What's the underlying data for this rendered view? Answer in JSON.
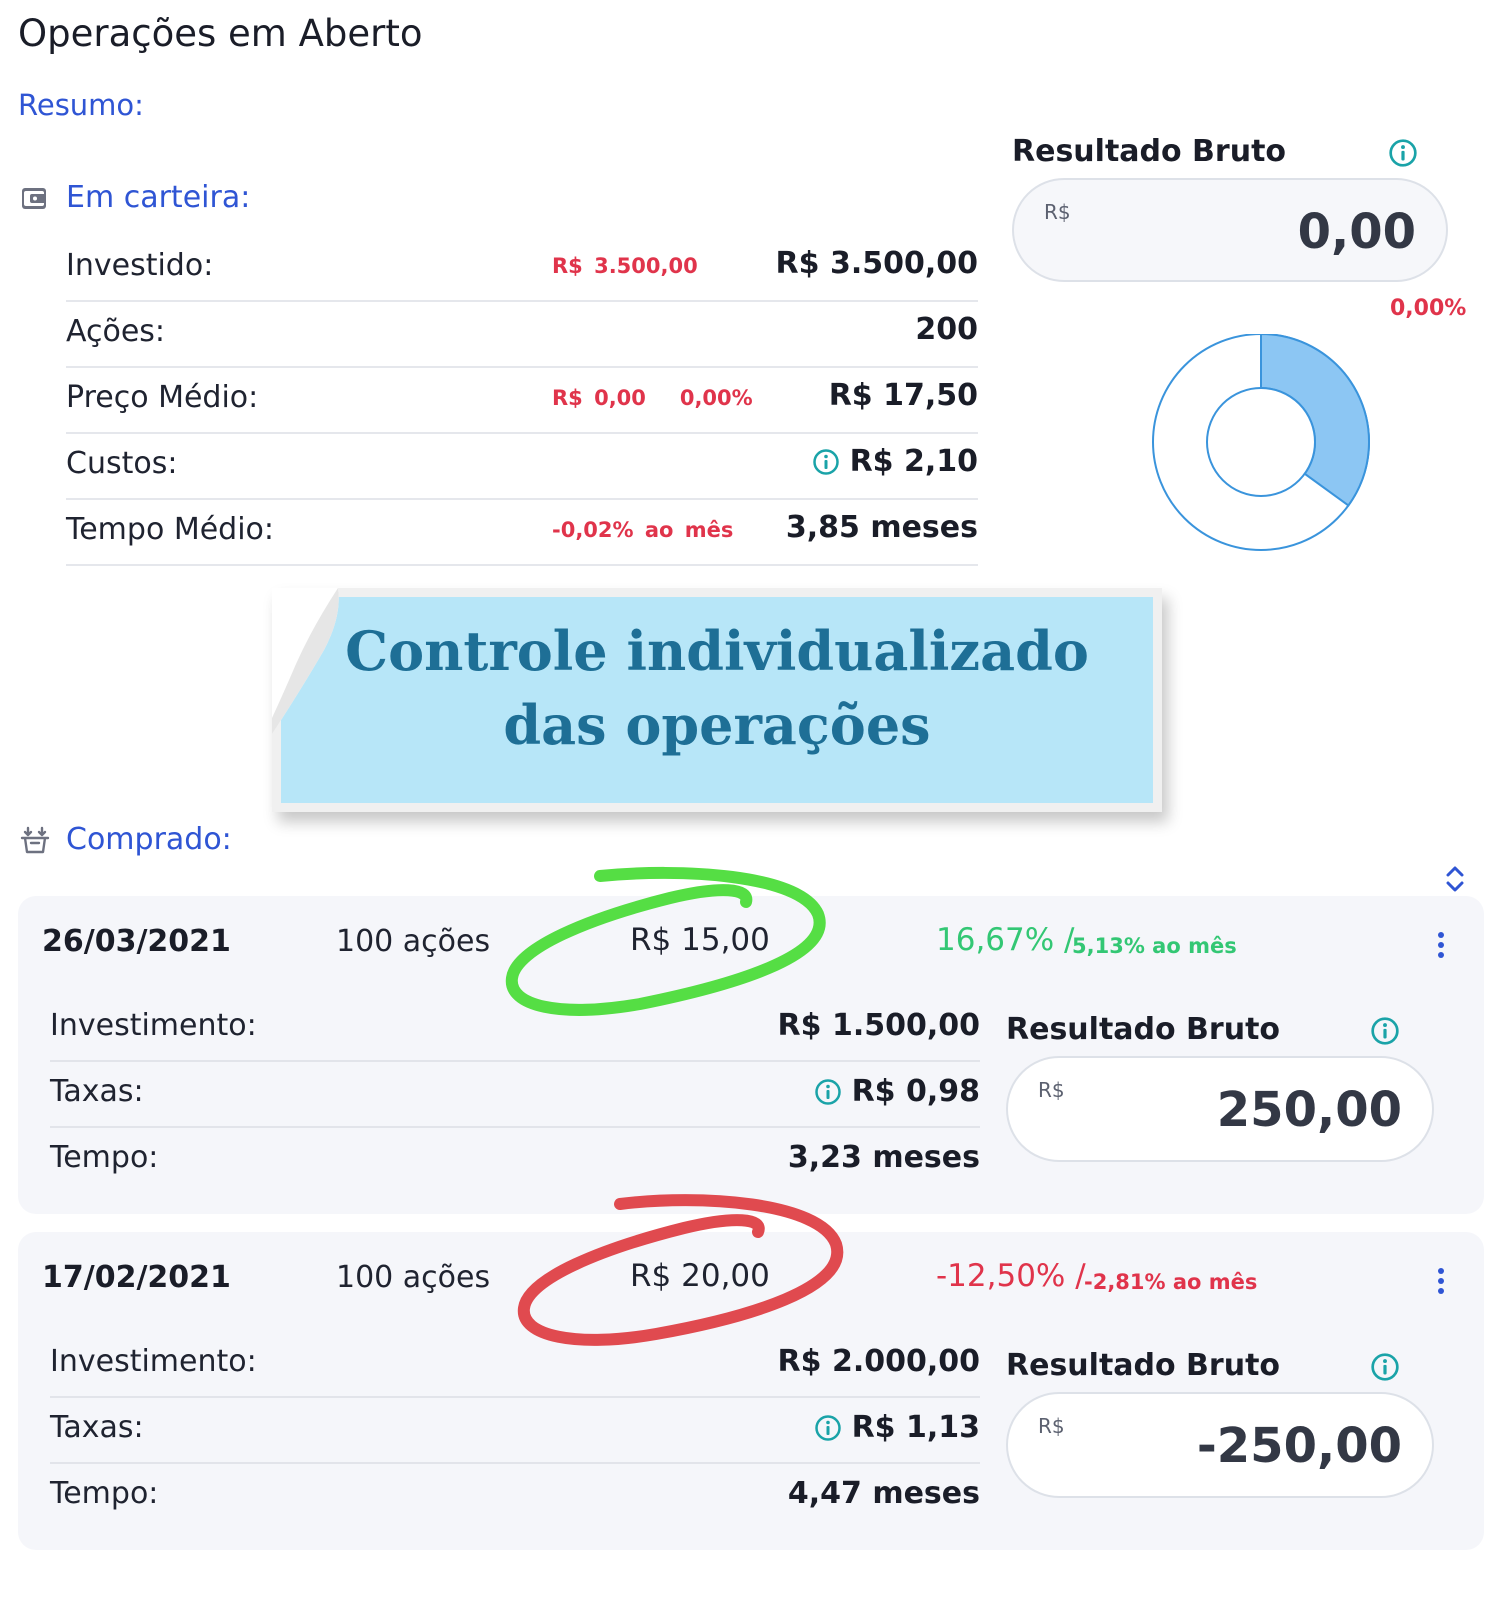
{
  "page_title": "Operações em Aberto",
  "resumo_label": "Resumo:",
  "em_carteira": {
    "label": "Em carteira:",
    "rows": [
      {
        "label": "Investido:",
        "mid": "R$ 3.500,00",
        "value": "R$ 3.500,00"
      },
      {
        "label": "Ações:",
        "mid": "",
        "value": "200"
      },
      {
        "label": "Preço Médio:",
        "mid": "R$ 0,00   0,00%",
        "value": "R$ 17,50"
      },
      {
        "label": "Custos:",
        "mid": "",
        "value": "R$ 2,10"
      },
      {
        "label": "Tempo Médio:",
        "mid": "-0,02% ao mês",
        "value": "3,85 meses"
      }
    ]
  },
  "resultado_bruto": {
    "title": "Resultado Bruto",
    "currency": "R$",
    "value": "0,00",
    "percent": "0,00%",
    "donut_fraction": 0.35
  },
  "banner": {
    "line1": "Controle individualizado",
    "line2": "das operações"
  },
  "comprado": {
    "label": "Comprado:",
    "operations": [
      {
        "date": "26/03/2021",
        "qty": "100 ações",
        "price": "R$ 15,00",
        "pct": "16,67% /",
        "pct_month": "5,13% ao mês",
        "investment_label": "Investimento:",
        "investment": "R$ 1.500,00",
        "fees_label": "Taxas:",
        "fees": "R$ 0,98",
        "time_label": "Tempo:",
        "time": "3,23 meses",
        "result_title": "Resultado Bruto",
        "result_currency": "R$",
        "result": "250,00",
        "status_color": "#33c774"
      },
      {
        "date": "17/02/2021",
        "qty": "100 ações",
        "price": "R$ 20,00",
        "pct": "-12,50% /",
        "pct_month": "-2,81% ao mês",
        "investment_label": "Investimento:",
        "investment": "R$ 2.000,00",
        "fees_label": "Taxas:",
        "fees": "R$ 1,13",
        "time_label": "Tempo:",
        "time": "4,47 meses",
        "result_title": "Resultado Bruto",
        "result_currency": "R$",
        "result": "-250,00",
        "status_color": "#e0344b"
      }
    ]
  },
  "colors": {
    "accent_blue": "#2f55d4",
    "teal_icon": "#1aa3a8",
    "negative": "#e0344b",
    "positive": "#33c774",
    "banner_bg": "#b7e6f8",
    "banner_text": "#1e6f96",
    "donut_fill": "#8cc6f3",
    "donut_stroke": "#3a94dc"
  },
  "icons": {
    "wallet": "wallet-icon",
    "basket": "basket-download-icon",
    "info": "info-circle-icon",
    "chevron": "chevron-up-down-icon",
    "menu": "vertical-dots-icon"
  }
}
